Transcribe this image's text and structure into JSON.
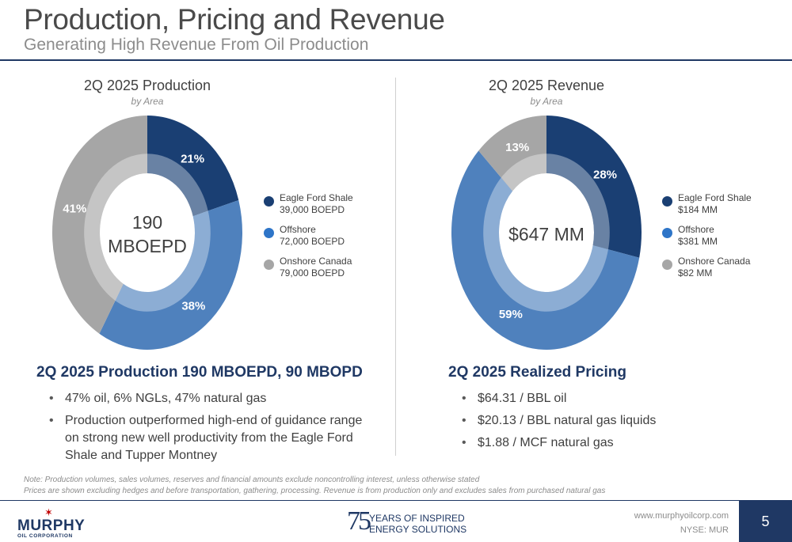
{
  "header": {
    "title": "Production, Pricing and Revenue",
    "subtitle": "Generating High Revenue From Oil Production"
  },
  "colors": {
    "eagle_ford": "#1a3f73",
    "offshore": "#4f81bd",
    "onshore_canada": "#a6a6a6",
    "brand_navy": "#1f3864"
  },
  "chart_data": [
    {
      "type": "pie",
      "title": "2Q 2025 Production",
      "subtitle": "by Area",
      "center_label": "190\nMBOEPD",
      "center_line1": "190",
      "center_line2": "MBOEPD",
      "slices": [
        {
          "name": "Eagle Ford Shale",
          "value_text": "39,000 BOEPD",
          "value": 39000,
          "pct": 21,
          "pct_label": "21%",
          "color": "#1a3f73"
        },
        {
          "name": "Offshore",
          "value_text": "72,000 BOEPD",
          "value": 72000,
          "pct": 38,
          "pct_label": "38%",
          "color": "#4f81bd"
        },
        {
          "name": "Onshore Canada",
          "value_text": "79,000 BOEPD",
          "value": 79000,
          "pct": 41,
          "pct_label": "41%",
          "color": "#a6a6a6"
        }
      ]
    },
    {
      "type": "pie",
      "title": "2Q 2025 Revenue",
      "subtitle": "by Area",
      "center_line1": "$647 MM",
      "slices": [
        {
          "name": "Eagle Ford Shale",
          "value_text": "$184 MM",
          "value": 184,
          "pct": 28,
          "pct_label": "28%",
          "color": "#1a3f73"
        },
        {
          "name": "Offshore",
          "value_text": "$381 MM",
          "value": 381,
          "pct": 59,
          "pct_label": "59%",
          "color": "#4f81bd"
        },
        {
          "name": "Onshore Canada",
          "value_text": "$82 MM",
          "value": 82,
          "pct": 13,
          "pct_label": "13%",
          "color": "#a6a6a6"
        }
      ]
    }
  ],
  "production_summary": {
    "heading": "2Q 2025 Production 190 MBOEPD, 90 MBOPD",
    "bullets": [
      "47% oil, 6% NGLs, 47% natural gas",
      "Production outperformed high-end of guidance range on strong new well productivity from the Eagle Ford Shale and Tupper Montney"
    ]
  },
  "pricing_summary": {
    "heading": "2Q 2025 Realized Pricing",
    "bullets": [
      "$64.31 / BBL oil",
      "$20.13 / BBL natural gas liquids",
      "$1.88 / MCF natural gas"
    ]
  },
  "notes": {
    "line1": "Note: Production volumes, sales volumes, reserves and financial amounts exclude noncontrolling interest, unless otherwise stated",
    "line2": "Prices are shown excluding hedges and before transportation, gathering, processing. Revenue is from production only and excludes sales from purchased natural gas"
  },
  "footer": {
    "logo_name": "MURPHY",
    "logo_sub": "OIL CORPORATION",
    "anniversary_number": "75",
    "anniversary_line1": "YEARS OF INSPIRED",
    "anniversary_line2": "ENERGY SOLUTIONS",
    "url": "www.murphyoilcorp.com",
    "ticker": "NYSE: MUR",
    "page": "5"
  }
}
